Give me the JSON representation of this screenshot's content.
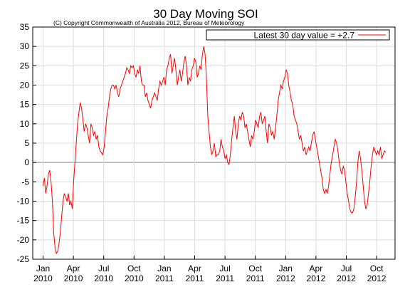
{
  "chart_data": {
    "type": "line",
    "title": "30 Day Moving SOI",
    "subtitle": "(C) Copyright Commonwealth of Australia 2012, Bureau of Meteorology",
    "xlabel": "",
    "ylabel": "",
    "ylim": [
      -25,
      35
    ],
    "yticks": [
      -25,
      -20,
      -15,
      -10,
      -5,
      0,
      5,
      10,
      15,
      20,
      25,
      30,
      35
    ],
    "grid": true,
    "legend_position": "top-right",
    "line_color": "#ff0000",
    "x_tick_labels": [
      [
        "Jan",
        "2010"
      ],
      [
        "Apr",
        "2010"
      ],
      [
        "Jul",
        "2010"
      ],
      [
        "Oct",
        "2010"
      ],
      [
        "Jan",
        "2011"
      ],
      [
        "Apr",
        "2011"
      ],
      [
        "Jul",
        "2011"
      ],
      [
        "Oct",
        "2011"
      ],
      [
        "Jan",
        "2012"
      ],
      [
        "Apr",
        "2012"
      ],
      [
        "Jul",
        "2012"
      ],
      [
        "Oct",
        "2012"
      ]
    ],
    "series": [
      {
        "name": "Latest 30 day value = +2.7",
        "x": [
          "2010-01-01",
          "2010-01-05",
          "2010-01-09",
          "2010-01-13",
          "2010-01-17",
          "2010-01-21",
          "2010-01-25",
          "2010-01-29",
          "2010-02-02",
          "2010-02-06",
          "2010-02-10",
          "2010-02-14",
          "2010-02-18",
          "2010-02-22",
          "2010-02-26",
          "2010-03-02",
          "2010-03-06",
          "2010-03-10",
          "2010-03-14",
          "2010-03-18",
          "2010-03-22",
          "2010-03-26",
          "2010-03-30",
          "2010-04-03",
          "2010-04-07",
          "2010-04-11",
          "2010-04-15",
          "2010-04-19",
          "2010-04-23",
          "2010-04-27",
          "2010-05-01",
          "2010-05-05",
          "2010-05-09",
          "2010-05-13",
          "2010-05-17",
          "2010-05-21",
          "2010-05-25",
          "2010-05-29",
          "2010-06-02",
          "2010-06-06",
          "2010-06-10",
          "2010-06-14",
          "2010-06-18",
          "2010-06-22",
          "2010-06-26",
          "2010-06-30",
          "2010-07-04",
          "2010-07-08",
          "2010-07-12",
          "2010-07-16",
          "2010-07-20",
          "2010-07-24",
          "2010-07-28",
          "2010-08-01",
          "2010-08-05",
          "2010-08-09",
          "2010-08-13",
          "2010-08-17",
          "2010-08-21",
          "2010-08-25",
          "2010-08-29",
          "2010-09-02",
          "2010-09-06",
          "2010-09-10",
          "2010-09-14",
          "2010-09-18",
          "2010-09-22",
          "2010-09-26",
          "2010-09-30",
          "2010-10-04",
          "2010-10-08",
          "2010-10-12",
          "2010-10-16",
          "2010-10-20",
          "2010-10-24",
          "2010-10-28",
          "2010-11-01",
          "2010-11-05",
          "2010-11-09",
          "2010-11-13",
          "2010-11-17",
          "2010-11-21",
          "2010-11-25",
          "2010-11-29",
          "2010-12-03",
          "2010-12-07",
          "2010-12-11",
          "2010-12-15",
          "2010-12-19",
          "2010-12-23",
          "2010-12-27",
          "2010-12-31",
          "2011-01-04",
          "2011-01-08",
          "2011-01-12",
          "2011-01-16",
          "2011-01-20",
          "2011-01-24",
          "2011-01-28",
          "2011-02-01",
          "2011-02-05",
          "2011-02-09",
          "2011-02-13",
          "2011-02-17",
          "2011-02-21",
          "2011-02-25",
          "2011-03-01",
          "2011-03-05",
          "2011-03-09",
          "2011-03-13",
          "2011-03-17",
          "2011-03-21",
          "2011-03-25",
          "2011-03-29",
          "2011-04-02",
          "2011-04-06",
          "2011-04-10",
          "2011-04-14",
          "2011-04-18",
          "2011-04-22",
          "2011-04-26",
          "2011-04-30",
          "2011-05-04",
          "2011-05-08",
          "2011-05-12",
          "2011-05-16",
          "2011-05-20",
          "2011-05-24",
          "2011-05-28",
          "2011-06-01",
          "2011-06-05",
          "2011-06-09",
          "2011-06-13",
          "2011-06-17",
          "2011-06-21",
          "2011-06-25",
          "2011-06-29",
          "2011-07-03",
          "2011-07-07",
          "2011-07-11",
          "2011-07-15",
          "2011-07-19",
          "2011-07-23",
          "2011-07-27",
          "2011-07-31",
          "2011-08-04",
          "2011-08-08",
          "2011-08-12",
          "2011-08-16",
          "2011-08-20",
          "2011-08-24",
          "2011-08-28",
          "2011-09-01",
          "2011-09-05",
          "2011-09-09",
          "2011-09-13",
          "2011-09-17",
          "2011-09-21",
          "2011-09-25",
          "2011-09-29",
          "2011-10-03",
          "2011-10-07",
          "2011-10-11",
          "2011-10-15",
          "2011-10-19",
          "2011-10-23",
          "2011-10-27",
          "2011-10-31",
          "2011-11-04",
          "2011-11-08",
          "2011-11-12",
          "2011-11-16",
          "2011-11-20",
          "2011-11-24",
          "2011-11-28",
          "2011-12-02",
          "2011-12-06",
          "2011-12-10",
          "2011-12-14",
          "2011-12-18",
          "2011-12-22",
          "2011-12-26",
          "2011-12-30",
          "2012-01-03",
          "2012-01-07",
          "2012-01-11",
          "2012-01-15",
          "2012-01-19",
          "2012-01-23",
          "2012-01-27",
          "2012-01-31",
          "2012-02-04",
          "2012-02-08",
          "2012-02-12",
          "2012-02-16",
          "2012-02-20",
          "2012-02-24",
          "2012-02-28",
          "2012-03-03",
          "2012-03-07",
          "2012-03-11",
          "2012-03-15",
          "2012-03-19",
          "2012-03-23",
          "2012-03-27",
          "2012-03-31",
          "2012-04-04",
          "2012-04-08",
          "2012-04-12",
          "2012-04-16",
          "2012-04-20",
          "2012-04-24",
          "2012-04-28",
          "2012-05-02",
          "2012-05-06",
          "2012-05-10",
          "2012-05-14",
          "2012-05-18",
          "2012-05-22",
          "2012-05-26",
          "2012-05-30",
          "2012-06-03",
          "2012-06-07",
          "2012-06-11",
          "2012-06-15",
          "2012-06-19",
          "2012-06-23",
          "2012-06-27",
          "2012-07-01",
          "2012-07-05",
          "2012-07-09",
          "2012-07-13",
          "2012-07-17",
          "2012-07-21",
          "2012-07-25",
          "2012-07-29",
          "2012-08-02",
          "2012-08-06",
          "2012-08-10",
          "2012-08-14",
          "2012-08-18",
          "2012-08-22",
          "2012-08-26",
          "2012-08-30",
          "2012-09-03",
          "2012-09-07",
          "2012-09-11",
          "2012-09-15",
          "2012-09-19",
          "2012-09-23",
          "2012-09-27",
          "2012-10-01",
          "2012-10-05",
          "2012-10-09",
          "2012-10-13",
          "2012-10-17",
          "2012-10-21",
          "2012-10-25",
          "2012-10-29"
        ],
        "y": [
          -6,
          -4,
          -8,
          -6,
          -3,
          -2,
          -5,
          -10,
          -18,
          -22,
          -23.5,
          -23,
          -21,
          -18,
          -14,
          -10,
          -8,
          -9,
          -10,
          -8,
          -11,
          -10,
          -12,
          -5,
          0,
          5,
          10,
          13,
          15.5,
          14,
          11,
          8,
          10,
          9,
          7,
          5,
          10,
          9,
          7,
          8,
          6,
          7,
          4,
          3,
          2.5,
          2,
          4,
          8,
          12,
          14,
          17,
          19,
          20,
          20,
          19,
          20,
          18,
          17,
          19,
          20,
          21,
          22,
          23,
          24.5,
          24,
          23,
          25,
          24.5,
          25,
          23,
          22,
          24,
          23,
          25,
          21,
          20,
          20,
          17,
          18,
          16,
          15,
          14,
          16,
          17,
          18,
          17,
          16,
          19,
          21,
          20,
          21,
          22,
          20,
          24,
          25,
          27,
          28,
          23,
          25,
          27,
          24,
          20,
          22,
          24,
          21,
          23,
          26,
          27.5,
          25,
          20,
          22,
          21,
          24,
          25,
          27,
          26,
          22,
          23,
          25,
          24,
          28,
          30,
          28,
          22,
          12,
          8,
          4,
          2,
          3,
          5,
          1.5,
          2,
          2,
          3,
          6,
          4,
          3,
          1,
          2,
          0,
          -0.5,
          2,
          6,
          9,
          12,
          8,
          6,
          10,
          12,
          11,
          13,
          12,
          9,
          10,
          8,
          6,
          4,
          7,
          6,
          8,
          11,
          10,
          9,
          12,
          13,
          10,
          11,
          12,
          8,
          5,
          10,
          9,
          7,
          8,
          6,
          9,
          12,
          16,
          18,
          20,
          19,
          21,
          22,
          24,
          23,
          20,
          18,
          16,
          15,
          12,
          11,
          10,
          8,
          6,
          7,
          5,
          3,
          4,
          2,
          3,
          4,
          3,
          5,
          7,
          8,
          6,
          4,
          2,
          0,
          -2,
          -4,
          -7,
          -8,
          -7,
          -8,
          -6,
          -3,
          0,
          2,
          4,
          6,
          5,
          3,
          0,
          -2,
          -3,
          -1,
          -2,
          -5,
          -8,
          -10,
          -12,
          -13,
          -13,
          -12,
          -9,
          -5,
          0,
          3,
          1,
          -2,
          -6,
          -10,
          -12,
          -11,
          -8,
          -5,
          -1,
          2,
          4,
          3,
          2,
          3,
          2,
          4,
          1,
          2,
          3,
          2.7
        ]
      }
    ]
  }
}
